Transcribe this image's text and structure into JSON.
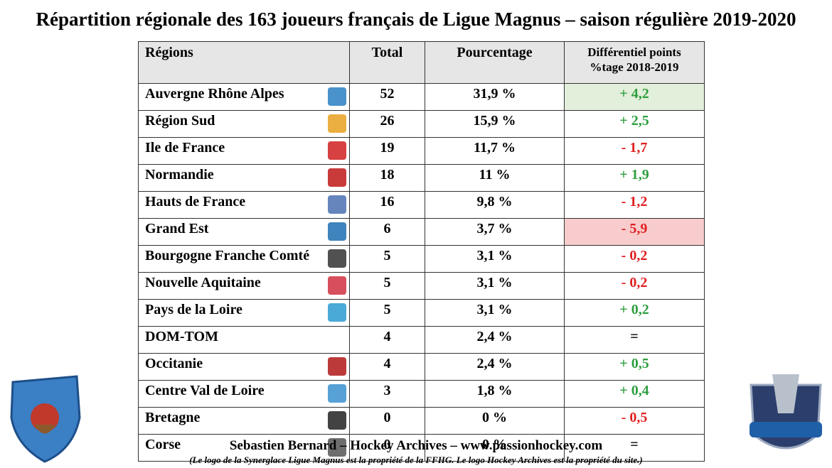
{
  "title": "Répartition régionale des 163 joueurs français de Ligue Magnus – saison régulière 2019-2020",
  "table": {
    "header": [
      "Régions",
      "Total",
      "Pourcentage",
      "Différentiel points\n%tage 2018-2019"
    ],
    "rows": [
      {
        "region": "Auvergne Rhône Alpes",
        "total": "52",
        "percent": "31,9 %",
        "diff": "+ 4,2",
        "diff_color": "#2e9e3e",
        "highlight": "#e2efda"
      },
      {
        "region": "Région Sud",
        "total": "26",
        "percent": "15,9 %",
        "diff": "+ 2,5",
        "diff_color": "#2e9e3e"
      },
      {
        "region": "Ile de France",
        "total": "19",
        "percent": "11,7 %",
        "diff": "- 1,7",
        "diff_color": "#e02020"
      },
      {
        "region": "Normandie",
        "total": "18",
        "percent": "11 %",
        "diff": "+ 1,9",
        "diff_color": "#2e9e3e"
      },
      {
        "region": "Hauts de France",
        "total": "16",
        "percent": "9,8 %",
        "diff": "- 1,2",
        "diff_color": "#e02020"
      },
      {
        "region": "Grand Est",
        "total": "6",
        "percent": "3,7 %",
        "diff": "- 5,9",
        "diff_color": "#e02020",
        "highlight": "#f8cccc"
      },
      {
        "region": "Bourgogne Franche Comté",
        "total": "5",
        "percent": "3,1 %",
        "diff": "- 0,2",
        "diff_color": "#e02020"
      },
      {
        "region": "Nouvelle Aquitaine",
        "total": "5",
        "percent": "3,1 %",
        "diff": "- 0,2",
        "diff_color": "#e02020"
      },
      {
        "region": "Pays de la Loire",
        "total": "5",
        "percent": "3,1 %",
        "diff": "+ 0,2",
        "diff_color": "#2e9e3e"
      },
      {
        "region": "DOM-TOM",
        "total": "4",
        "percent": "2,4 %",
        "diff": "=",
        "diff_color": "#000000"
      },
      {
        "region": "Occitanie",
        "total": "4",
        "percent": "2,4 %",
        "diff": "+ 0,5",
        "diff_color": "#2e9e3e"
      },
      {
        "region": "Centre Val de Loire",
        "total": "3",
        "percent": "1,8 %",
        "diff": "+ 0,4",
        "diff_color": "#2e9e3e"
      },
      {
        "region": "Bretagne",
        "total": "0",
        "percent": "0 %",
        "diff": "- 0,5",
        "diff_color": "#e02020"
      },
      {
        "region": "Corse",
        "total": "0",
        "percent": "0 %",
        "diff": "=",
        "diff_color": "#000000"
      }
    ]
  },
  "footer": {
    "credit": "Sebastien Bernard – Hockey Archives – www.passionhockey.com",
    "note": "(Le logo de la Synerglace Ligue Magnus est la propriété de la FFHG. Le logo Hockey Archives est la propriété du site.)"
  }
}
